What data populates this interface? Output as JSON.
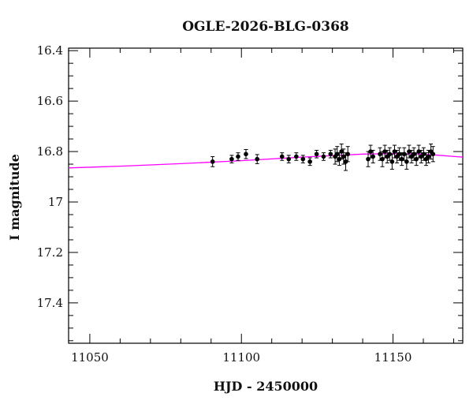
{
  "chart_data": {
    "type": "scatter",
    "title": "OGLE-2026-BLG-0368",
    "xlabel": "HJD - 2450000",
    "ylabel": "I magnitude",
    "xlim": [
      11043,
      11173
    ],
    "ylim": [
      17.56,
      16.39
    ],
    "y_inverted": true,
    "grid": false,
    "x_ticks": [
      11050,
      11100,
      11150
    ],
    "y_ticks": [
      16.4,
      16.6,
      16.8,
      17,
      17.2,
      17.4
    ],
    "y_tick_labels": [
      "16.4",
      "16.6",
      "16.8",
      "17",
      "17.2",
      "17.4"
    ],
    "series": [
      {
        "kind": "points_with_errorbars",
        "color": "#000000",
        "x": [
          11090.5,
          11096.8,
          11098.9,
          11101.5,
          11105.2,
          11113.4,
          11115.6,
          11118.1,
          11120.3,
          11122.6,
          11124.8,
          11127.1,
          11129.4,
          11130.9,
          11131.6,
          11132.3,
          11133.0,
          11133.7,
          11134.4,
          11135.1,
          11141.8,
          11142.6,
          11143.4,
          11145.7,
          11146.5,
          11147.3,
          11148.1,
          11148.9,
          11149.7,
          11150.5,
          11151.3,
          11152.1,
          11152.9,
          11153.7,
          11154.5,
          11155.3,
          11156.1,
          11156.9,
          11157.7,
          11158.5,
          11159.3,
          11160.1,
          11160.9,
          11161.7,
          11162.5,
          11163.2
        ],
        "y": [
          16.84,
          16.83,
          16.82,
          16.81,
          16.83,
          16.82,
          16.83,
          16.82,
          16.83,
          16.84,
          16.81,
          16.82,
          16.81,
          16.82,
          16.81,
          16.83,
          16.8,
          16.82,
          16.84,
          16.81,
          16.83,
          16.8,
          16.82,
          16.81,
          16.83,
          16.8,
          16.82,
          16.81,
          16.84,
          16.8,
          16.82,
          16.81,
          16.83,
          16.81,
          16.84,
          16.8,
          16.82,
          16.81,
          16.83,
          16.8,
          16.82,
          16.81,
          16.83,
          16.82,
          16.8,
          16.81
        ],
        "err": [
          0.02,
          0.015,
          0.015,
          0.018,
          0.018,
          0.015,
          0.015,
          0.015,
          0.015,
          0.015,
          0.015,
          0.015,
          0.015,
          0.03,
          0.03,
          0.025,
          0.03,
          0.03,
          0.035,
          0.03,
          0.03,
          0.025,
          0.025,
          0.025,
          0.03,
          0.025,
          0.025,
          0.025,
          0.03,
          0.025,
          0.025,
          0.025,
          0.025,
          0.025,
          0.03,
          0.025,
          0.025,
          0.025,
          0.025,
          0.025,
          0.025,
          0.025,
          0.025,
          0.025,
          0.03,
          0.03
        ]
      },
      {
        "kind": "model_line",
        "color": "#ff00ff",
        "x": [
          11043,
          11060,
          11080,
          11100,
          11120,
          11140,
          11150,
          11160,
          11173
        ],
        "y": [
          16.865,
          16.858,
          16.848,
          16.836,
          16.822,
          16.81,
          16.808,
          16.81,
          16.822
        ]
      }
    ]
  }
}
